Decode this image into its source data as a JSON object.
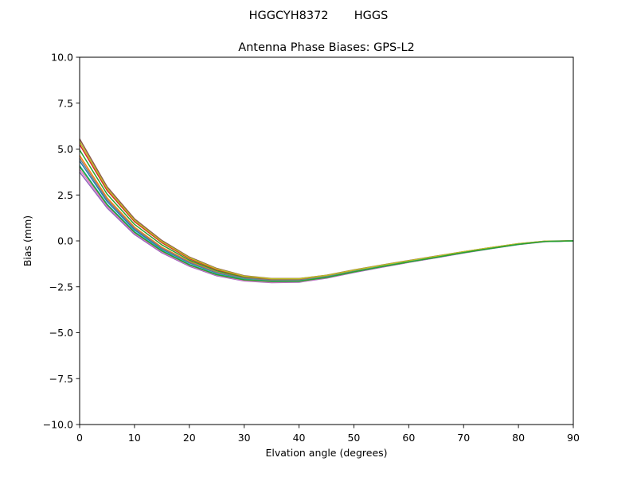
{
  "figure": {
    "suptitle": "HGGCYH8372       HGGS"
  },
  "chart_data": {
    "type": "line",
    "title": "Antenna Phase Biases: GPS-L2",
    "xlabel": "Elvation angle (degrees)",
    "ylabel": "Bias (mm)",
    "xlim": [
      0,
      90
    ],
    "ylim": [
      -10,
      10
    ],
    "xticks": [
      0,
      10,
      20,
      30,
      40,
      50,
      60,
      70,
      80,
      90
    ],
    "yticks": [
      -10.0,
      -7.5,
      -5.0,
      -2.5,
      0.0,
      2.5,
      5.0,
      7.5,
      10.0
    ],
    "xtick_labels": [
      "0",
      "10",
      "20",
      "30",
      "40",
      "50",
      "60",
      "70",
      "80",
      "90"
    ],
    "ytick_labels": [
      "−10.0",
      "−7.5",
      "−5.0",
      "−2.5",
      "0.0",
      "2.5",
      "5.0",
      "7.5",
      "10.0"
    ],
    "grid": false,
    "legend": "none",
    "x": [
      0,
      5,
      10,
      15,
      20,
      25,
      30,
      35,
      40,
      45,
      50,
      55,
      60,
      65,
      70,
      75,
      80,
      85,
      90
    ],
    "series": [
      {
        "color": "#1f77b4",
        "values": [
          4.35,
          2.15,
          0.6,
          -0.45,
          -1.2,
          -1.75,
          -2.05,
          -2.15,
          -2.15,
          -1.95,
          -1.65,
          -1.38,
          -1.12,
          -0.88,
          -0.63,
          -0.4,
          -0.18,
          -0.03,
          0.0
        ]
      },
      {
        "color": "#ff7f0e",
        "values": [
          4.65,
          2.35,
          0.75,
          -0.35,
          -1.12,
          -1.7,
          -2.02,
          -2.13,
          -2.13,
          -1.93,
          -1.64,
          -1.37,
          -1.11,
          -0.87,
          -0.62,
          -0.39,
          -0.17,
          -0.02,
          0.0
        ]
      },
      {
        "color": "#2ca02c",
        "values": [
          4.95,
          2.55,
          0.9,
          -0.22,
          -1.05,
          -1.63,
          -1.98,
          -2.1,
          -2.1,
          -1.91,
          -1.62,
          -1.35,
          -1.1,
          -0.86,
          -0.61,
          -0.38,
          -0.16,
          -0.02,
          0.0
        ]
      },
      {
        "color": "#d62728",
        "values": [
          5.25,
          2.75,
          1.05,
          -0.1,
          -0.97,
          -1.57,
          -1.94,
          -2.08,
          -2.08,
          -1.89,
          -1.6,
          -1.34,
          -1.09,
          -0.85,
          -0.6,
          -0.37,
          -0.16,
          -0.02,
          0.0
        ]
      },
      {
        "color": "#9467bd",
        "values": [
          3.75,
          1.8,
          0.35,
          -0.65,
          -1.38,
          -1.9,
          -2.18,
          -2.27,
          -2.25,
          -2.03,
          -1.72,
          -1.44,
          -1.17,
          -0.92,
          -0.66,
          -0.42,
          -0.2,
          -0.04,
          0.0
        ]
      },
      {
        "color": "#8c564b",
        "values": [
          5.55,
          2.95,
          1.2,
          0.02,
          -0.88,
          -1.5,
          -1.9,
          -2.05,
          -2.05,
          -1.87,
          -1.58,
          -1.32,
          -1.07,
          -0.83,
          -0.59,
          -0.36,
          -0.15,
          -0.01,
          0.0
        ]
      },
      {
        "color": "#e377c2",
        "values": [
          3.9,
          1.9,
          0.42,
          -0.6,
          -1.34,
          -1.87,
          -2.16,
          -2.25,
          -2.23,
          -2.01,
          -1.7,
          -1.42,
          -1.16,
          -0.91,
          -0.65,
          -0.41,
          -0.19,
          -0.04,
          0.0
        ]
      },
      {
        "color": "#7f7f7f",
        "values": [
          4.5,
          2.25,
          0.68,
          -0.4,
          -1.16,
          -1.72,
          -2.03,
          -2.14,
          -2.14,
          -1.94,
          -1.65,
          -1.37,
          -1.11,
          -0.87,
          -0.62,
          -0.39,
          -0.17,
          -0.03,
          0.0
        ]
      },
      {
        "color": "#bcbd22",
        "values": [
          5.4,
          2.85,
          1.12,
          -0.04,
          -0.92,
          -1.53,
          -1.92,
          -2.06,
          -2.06,
          -1.88,
          -1.59,
          -1.33,
          -1.08,
          -0.84,
          -0.59,
          -0.36,
          -0.15,
          -0.01,
          0.0
        ]
      },
      {
        "color": "#17becf",
        "values": [
          4.1,
          2.0,
          0.5,
          -0.52,
          -1.28,
          -1.82,
          -2.1,
          -2.2,
          -2.19,
          -1.98,
          -1.68,
          -1.4,
          -1.14,
          -0.9,
          -0.64,
          -0.41,
          -0.19,
          -0.03,
          0.0
        ]
      },
      {
        "color": "#2ca02c",
        "values": [
          4.05,
          1.97,
          0.47,
          -0.55,
          -1.3,
          -1.84,
          -2.12,
          -2.21,
          -2.2,
          -1.99,
          -1.69,
          -1.41,
          -1.15,
          -0.9,
          -0.64,
          -0.41,
          -0.19,
          -0.03,
          0.0
        ]
      }
    ]
  }
}
